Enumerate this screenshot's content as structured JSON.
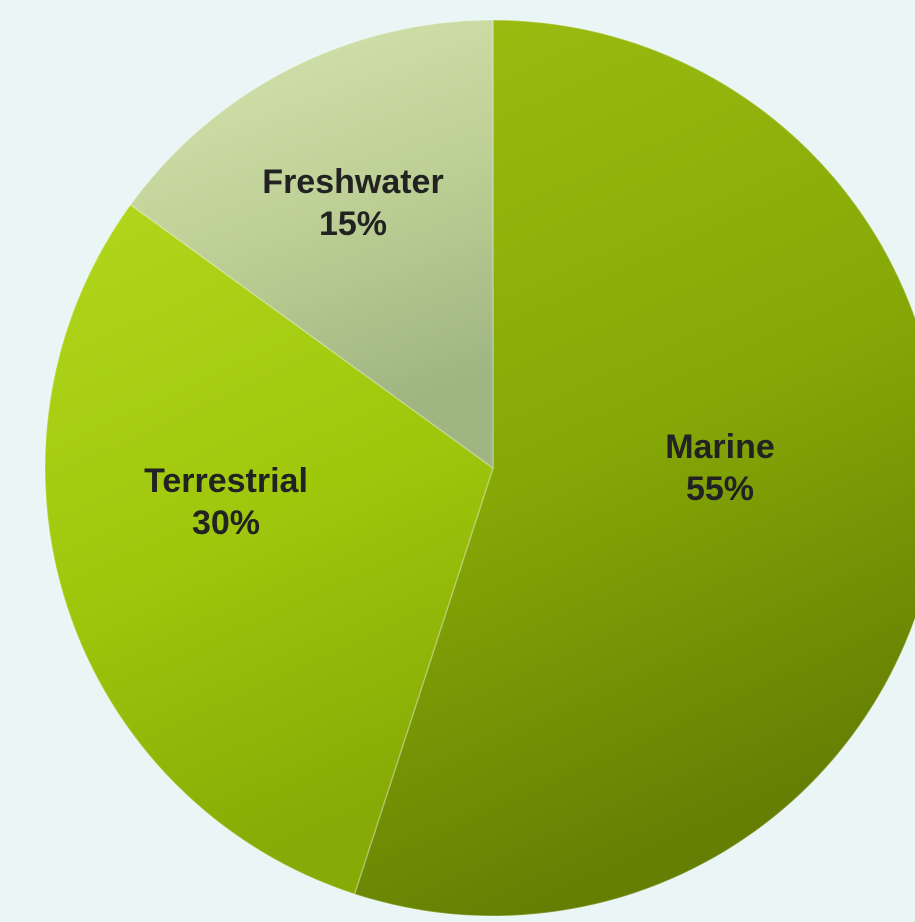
{
  "chart_data": {
    "type": "pie",
    "title": "",
    "start": "top",
    "direction": "clockwise",
    "slices": [
      {
        "label": "Marine",
        "value": 55,
        "value_label": "55%",
        "color": "#86a806",
        "color_light": "#9cbd11",
        "color_dark": "#647f04"
      },
      {
        "label": "Terrestrial",
        "value": 30,
        "value_label": "30%",
        "color": "#9ec70c",
        "color_light": "#b2d71d",
        "color_dark": "#86ab06"
      },
      {
        "label": "Freshwater",
        "value": 15,
        "value_label": "15%",
        "color": "#bccf94",
        "color_light": "#d8e6b2",
        "color_dark": "#9fb582"
      }
    ]
  }
}
